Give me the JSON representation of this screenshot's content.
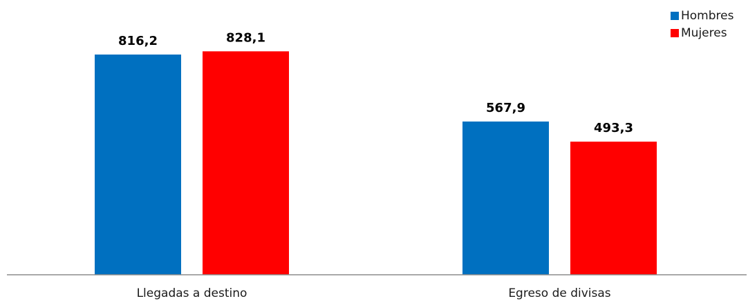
{
  "chart_data": {
    "type": "bar",
    "categories": [
      "Llegadas a destino",
      "Egreso de divisas"
    ],
    "series": [
      {
        "name": "Hombres",
        "color": "#0070C0",
        "values": [
          816.2,
          567.9
        ],
        "labels": [
          "816,2",
          "567,9"
        ]
      },
      {
        "name": "Mujeres",
        "color": "#FF0000",
        "values": [
          828.1,
          493.3
        ],
        "labels": [
          "828,1",
          "493,3"
        ]
      }
    ],
    "title": "",
    "xlabel": "",
    "ylabel": "",
    "ylim": [
      0,
      1000
    ],
    "grid": false,
    "legend_position": "top-right",
    "axis_color": "#8C8C8C"
  }
}
